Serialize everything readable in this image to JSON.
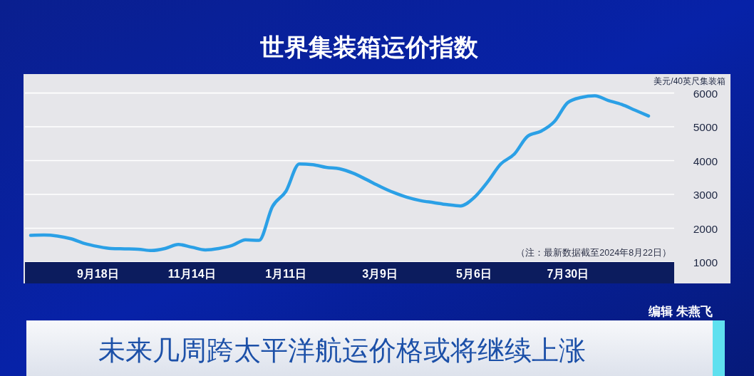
{
  "chart_data": {
    "type": "line",
    "title": "世界集装箱运价指数",
    "ylabel": "美元/40英尺集装箱",
    "categories": [
      null,
      null,
      null,
      null,
      null,
      "9月18日",
      null,
      null,
      null,
      null,
      null,
      null,
      "11月14日",
      null,
      null,
      null,
      null,
      null,
      null,
      "1月11日",
      null,
      null,
      null,
      null,
      null,
      null,
      "3月9日",
      null,
      null,
      null,
      null,
      null,
      null,
      "5月6日",
      null,
      null,
      null,
      null,
      null,
      null,
      "7月30日",
      null,
      null,
      null,
      null,
      null,
      null
    ],
    "series": [
      {
        "color": "#2ba0e6",
        "values": [
          1790,
          1800,
          1770,
          1690,
          1550,
          1460,
          1400,
          1390,
          1380,
          1340,
          1400,
          1520,
          1440,
          1360,
          1400,
          1490,
          1660,
          1640,
          2640,
          3090,
          3900,
          3880,
          3800,
          3760,
          3630,
          3440,
          3240,
          3060,
          2920,
          2820,
          2760,
          2700,
          2660,
          2900,
          3360,
          3900,
          4190,
          4720,
          4870,
          5160,
          5720,
          5870,
          5920,
          5780,
          5660,
          5490,
          5320
        ]
      }
    ],
    "ylim": [
      1000,
      6560
    ],
    "yticks": [
      1000,
      2000,
      3000,
      4000,
      5000,
      6000
    ],
    "grid": "y",
    "annotations": [
      "（注：最新数据截至2024年8月22日）",
      "编辑 朱燕飞",
      "未来几周跨太平洋航运价格或将继续上涨"
    ]
  }
}
